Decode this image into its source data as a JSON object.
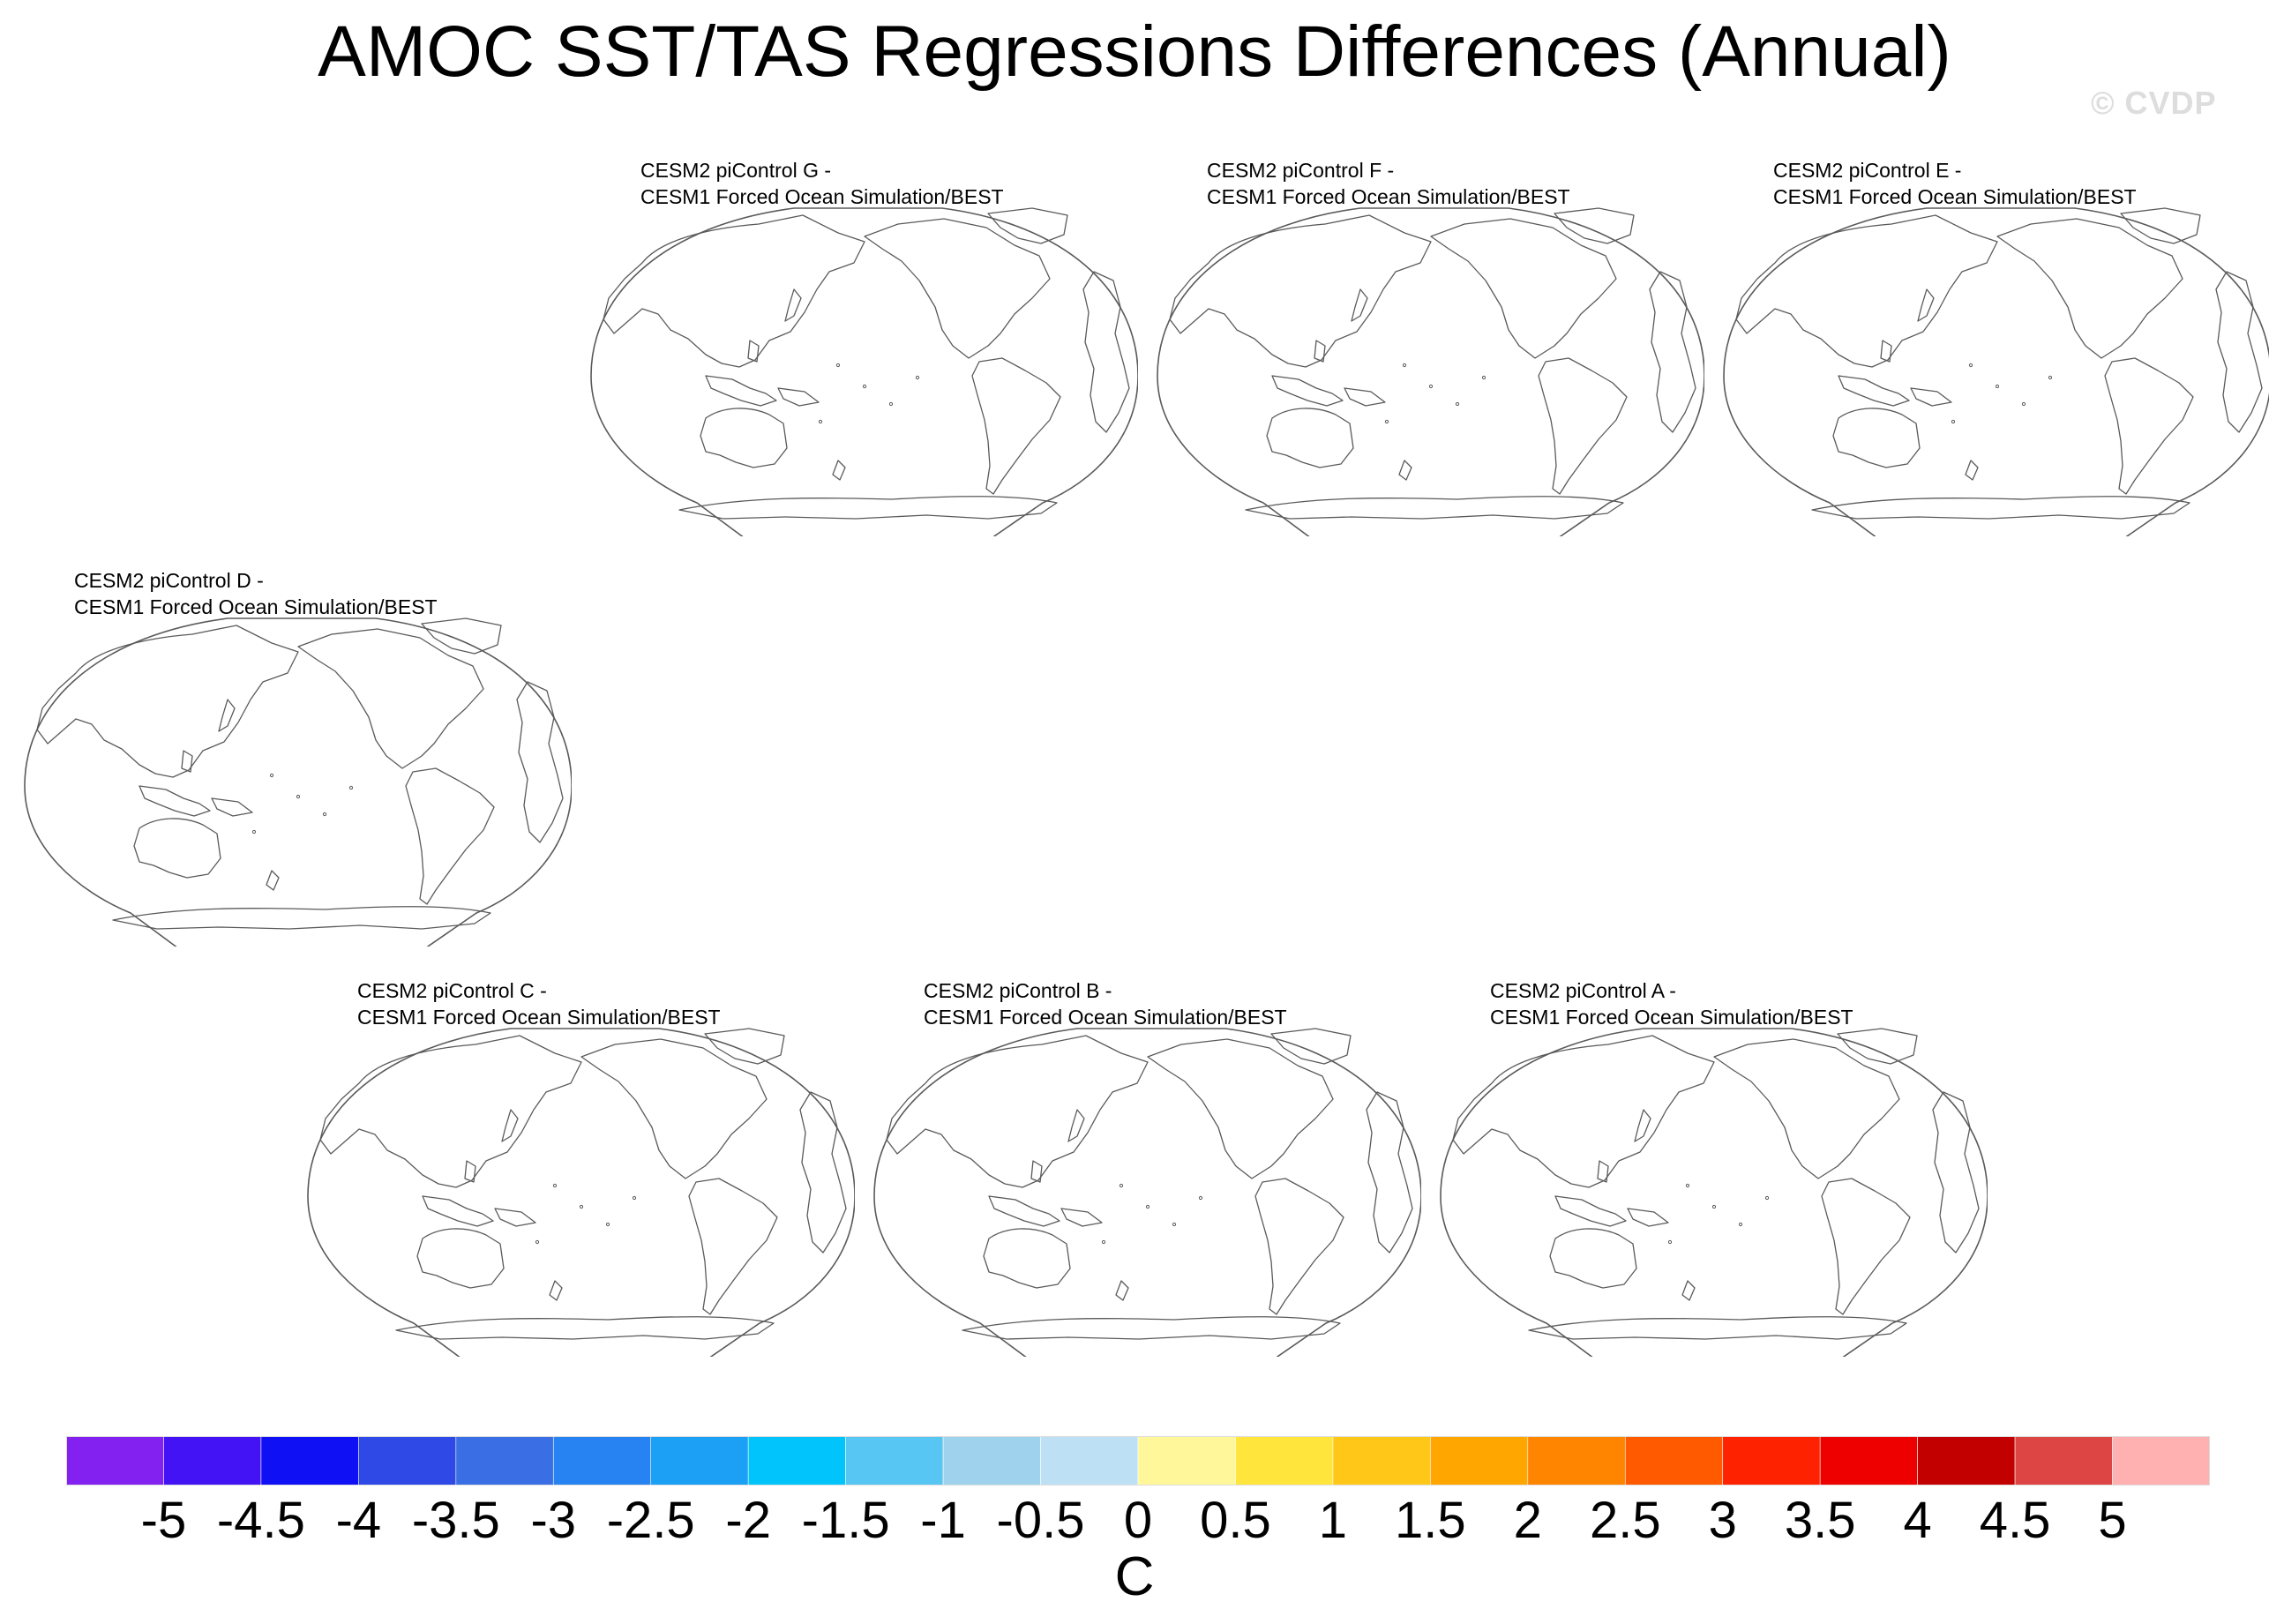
{
  "title": "AMOC SST/TAS Regressions Differences (Annual)",
  "watermark": "© CVDP",
  "panels": [
    {
      "id": "G",
      "line1": "CESM2 piControl G -",
      "line2": "CESM1 Forced Ocean Simulation/BEST"
    },
    {
      "id": "F",
      "line1": "CESM2 piControl F -",
      "line2": "CESM1 Forced Ocean Simulation/BEST"
    },
    {
      "id": "E",
      "line1": "CESM2 piControl E -",
      "line2": "CESM1 Forced Ocean Simulation/BEST"
    },
    {
      "id": "D",
      "line1": "CESM2 piControl D -",
      "line2": "CESM1 Forced Ocean Simulation/BEST"
    },
    {
      "id": "C",
      "line1": "CESM2 piControl C -",
      "line2": "CESM1 Forced Ocean Simulation/BEST"
    },
    {
      "id": "B",
      "line1": "CESM2 piControl B -",
      "line2": "CESM1 Forced Ocean Simulation/BEST"
    },
    {
      "id": "A",
      "line1": "CESM2 piControl A -",
      "line2": "CESM1 Forced Ocean Simulation/BEST"
    }
  ],
  "colorbar": {
    "unit": "C",
    "ticks": [
      "-5",
      "-4.5",
      "-4",
      "-3.5",
      "-3",
      "-2.5",
      "-2",
      "-1.5",
      "-1",
      "-0.5",
      "0",
      "0.5",
      "1",
      "1.5",
      "2",
      "2.5",
      "3",
      "3.5",
      "4",
      "4.5",
      "5"
    ],
    "colors": [
      "#8322f0",
      "#4313f5",
      "#1010f4",
      "#2e49e5",
      "#3a6ee4",
      "#2883f2",
      "#1ba0f5",
      "#00c4fb",
      "#58c6f2",
      "#9ed2ed",
      "#bde0f5",
      "#fff79a",
      "#ffe53c",
      "#ffc818",
      "#ffa600",
      "#ff8400",
      "#ff5a00",
      "#ff2200",
      "#ef0000",
      "#c20000",
      "#dd4444",
      "#ffb0b0"
    ]
  }
}
